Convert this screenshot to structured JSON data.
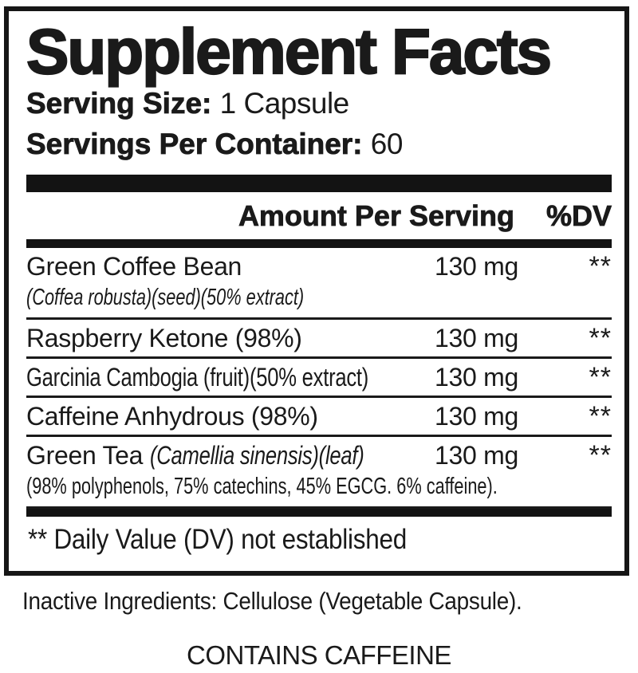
{
  "label": {
    "title": "Supplement Facts",
    "serving_size_label": "Serving Size:",
    "serving_size_value": "1 Capsule",
    "servings_per_container_label": "Servings Per Container:",
    "servings_per_container_value": "60",
    "column_header": {
      "amount": "Amount Per Serving",
      "dv": "%DV"
    },
    "rows": [
      {
        "name": "Green Coffee Bean",
        "subline_italic": "(Coffea robusta)(seed)(50% extract)",
        "amount": "130 mg",
        "dv": "**"
      },
      {
        "name": "Raspberry Ketone (98%)",
        "amount": "130 mg",
        "dv": "**"
      },
      {
        "name": "Garcinia Cambogia (fruit)(50% extract)",
        "amount": "130 mg",
        "dv": "**"
      },
      {
        "name": "Caffeine Anhydrous (98%)",
        "amount": "130 mg",
        "dv": "**"
      },
      {
        "name": "Green Tea",
        "name_italic": "(Camellia sinensis)(leaf)",
        "amount": "130 mg",
        "dv": "**",
        "subline": "(98% polyphenols, 75% catechins, 45% EGCG. 6% caffeine)."
      }
    ],
    "footnote": "** Daily Value (DV) not established",
    "inactive_ingredients": "Inactive Ingredients: Cellulose (Vegetable Capsule).",
    "contains_statement": "CONTAINS CAFFEINE",
    "colors": {
      "ink": "#1a1a1a",
      "background": "#ffffff"
    }
  }
}
